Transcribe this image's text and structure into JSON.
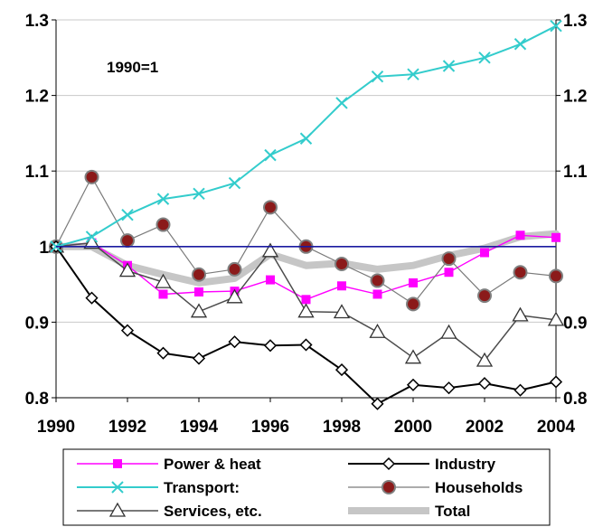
{
  "chart_data": {
    "type": "line",
    "annotation": "1990=1",
    "x": [
      1990,
      1991,
      1992,
      1993,
      1994,
      1995,
      1996,
      1997,
      1998,
      1999,
      2000,
      2001,
      2002,
      2003,
      2004
    ],
    "xticks": [
      "1990",
      "1992",
      "1994",
      "1996",
      "1998",
      "2000",
      "2002",
      "2004"
    ],
    "yticks_left": [
      "1.3",
      "1.2",
      "1.1",
      "1",
      "0.9",
      "0.8"
    ],
    "yticks_right": [
      "1.3",
      "1.2",
      "1.1",
      "0.9",
      "0.8"
    ],
    "ylim": [
      0.8,
      1.3
    ],
    "xlim": [
      1990,
      2004
    ],
    "reference_line": {
      "y": 1.0,
      "color": "#1a1aa0"
    },
    "grid": "horizontal",
    "legend_position": "bottom",
    "series": [
      {
        "name": "Total",
        "color": "#c0c0c0",
        "marker": "none",
        "values": [
          1.0,
          1.0,
          0.975,
          0.963,
          0.952,
          0.958,
          0.99,
          0.975,
          0.978,
          0.97,
          0.975,
          0.988,
          0.998,
          1.013,
          1.017
        ]
      },
      {
        "name": "Power & heat",
        "color": "#ff00ff",
        "marker": "square",
        "values": [
          1.0,
          1.005,
          0.975,
          0.937,
          0.94,
          0.941,
          0.956,
          0.93,
          0.948,
          0.937,
          0.952,
          0.966,
          0.992,
          1.015,
          1.012
        ]
      },
      {
        "name": "Services, etc.",
        "color": "#4d4d4d",
        "marker": "triangle",
        "values": [
          1.0,
          1.005,
          0.968,
          0.953,
          0.914,
          0.933,
          0.994,
          0.914,
          0.913,
          0.887,
          0.853,
          0.886,
          0.849,
          0.909,
          0.903
        ]
      },
      {
        "name": "Households",
        "color": "#808080",
        "marker": "circle",
        "values": [
          1.0,
          1.092,
          1.008,
          1.029,
          0.963,
          0.97,
          1.052,
          1.0,
          0.977,
          0.955,
          0.924,
          0.984,
          0.935,
          0.966,
          0.961
        ]
      },
      {
        "name": "Industry",
        "color": "#000000",
        "marker": "diamond",
        "values": [
          1.0,
          0.932,
          0.889,
          0.859,
          0.852,
          0.874,
          0.869,
          0.87,
          0.837,
          0.792,
          0.817,
          0.813,
          0.819,
          0.81,
          0.821
        ]
      },
      {
        "name": "Transport:",
        "color": "#33cccc",
        "marker": "x",
        "values": [
          1.0,
          1.013,
          1.042,
          1.063,
          1.07,
          1.084,
          1.121,
          1.143,
          1.19,
          1.225,
          1.228,
          1.239,
          1.25,
          1.268,
          1.292
        ]
      }
    ],
    "legend_order": [
      "Power & heat",
      "Industry",
      "Transport:",
      "Households",
      "Services, etc.",
      "Total"
    ]
  }
}
